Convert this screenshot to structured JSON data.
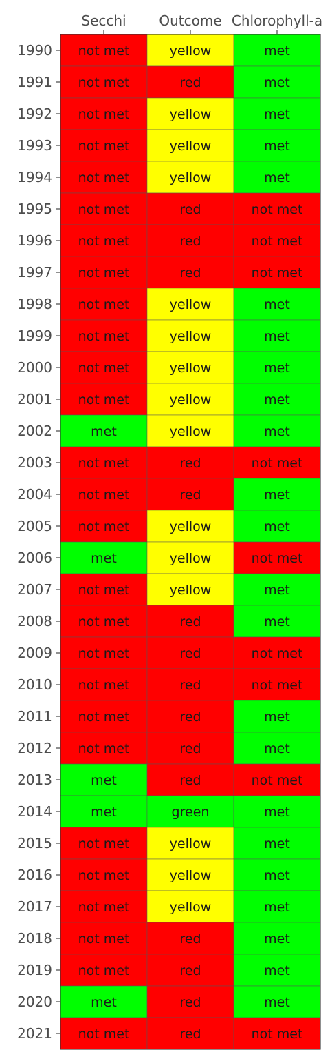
{
  "chart_data": {
    "type": "heatmap",
    "title": "",
    "xlabel": "",
    "ylabel": "",
    "legend": "none",
    "grid": false,
    "columns": [
      "Secchi",
      "Outcome",
      "Chlorophyll-a"
    ],
    "rows": [
      "1990",
      "1991",
      "1992",
      "1993",
      "1994",
      "1995",
      "1996",
      "1997",
      "1998",
      "1999",
      "2000",
      "2001",
      "2002",
      "2003",
      "2004",
      "2005",
      "2006",
      "2007",
      "2008",
      "2009",
      "2010",
      "2011",
      "2012",
      "2013",
      "2014",
      "2015",
      "2016",
      "2017",
      "2018",
      "2019",
      "2020",
      "2021"
    ],
    "values": [
      [
        "not met",
        "yellow",
        "met"
      ],
      [
        "not met",
        "red",
        "met"
      ],
      [
        "not met",
        "yellow",
        "met"
      ],
      [
        "not met",
        "yellow",
        "met"
      ],
      [
        "not met",
        "yellow",
        "met"
      ],
      [
        "not met",
        "red",
        "not met"
      ],
      [
        "not met",
        "red",
        "not met"
      ],
      [
        "not met",
        "red",
        "not met"
      ],
      [
        "not met",
        "yellow",
        "met"
      ],
      [
        "not met",
        "yellow",
        "met"
      ],
      [
        "not met",
        "yellow",
        "met"
      ],
      [
        "not met",
        "yellow",
        "met"
      ],
      [
        "met",
        "yellow",
        "met"
      ],
      [
        "not met",
        "red",
        "not met"
      ],
      [
        "not met",
        "red",
        "met"
      ],
      [
        "not met",
        "yellow",
        "met"
      ],
      [
        "met",
        "yellow",
        "not met"
      ],
      [
        "not met",
        "yellow",
        "met"
      ],
      [
        "not met",
        "red",
        "met"
      ],
      [
        "not met",
        "red",
        "not met"
      ],
      [
        "not met",
        "red",
        "not met"
      ],
      [
        "not met",
        "red",
        "met"
      ],
      [
        "not met",
        "red",
        "met"
      ],
      [
        "met",
        "red",
        "not met"
      ],
      [
        "met",
        "green",
        "met"
      ],
      [
        "not met",
        "yellow",
        "met"
      ],
      [
        "not met",
        "yellow",
        "met"
      ],
      [
        "not met",
        "yellow",
        "met"
      ],
      [
        "not met",
        "red",
        "met"
      ],
      [
        "not met",
        "red",
        "met"
      ],
      [
        "met",
        "red",
        "met"
      ],
      [
        "not met",
        "red",
        "not met"
      ]
    ],
    "colors": {
      "not met": "#ff0000",
      "met": "#00ff00",
      "red": "#ff0000",
      "yellow": "#ffff00",
      "green": "#00ff00"
    }
  }
}
